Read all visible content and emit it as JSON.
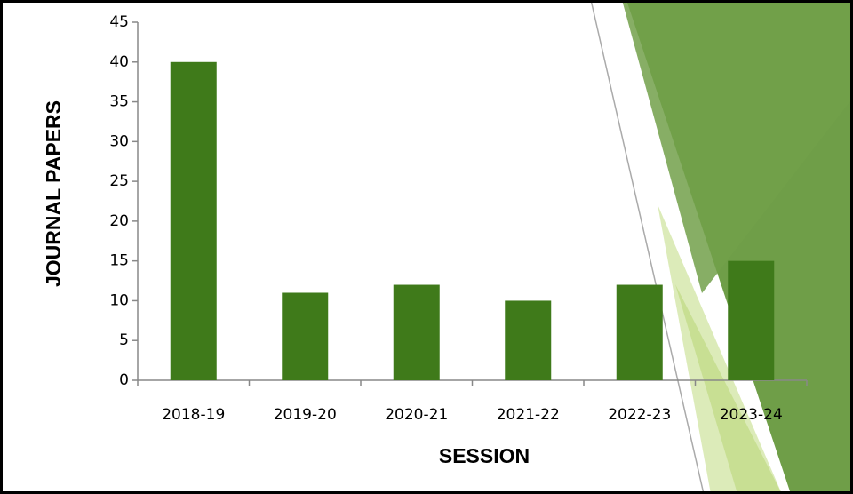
{
  "chart_data": {
    "type": "bar",
    "x_label": "SESSION",
    "y_label": "JOURNAL PAPERS",
    "categories": [
      "2018-19",
      "2019-20",
      "2020-21",
      "2021-22",
      "2022-23",
      "2023-24"
    ],
    "values": [
      40,
      11,
      12,
      10,
      12,
      15
    ],
    "color": "#3f7a1a",
    "ylim": [
      0,
      45
    ],
    "yticks": [
      0,
      5,
      10,
      15,
      20,
      25,
      30,
      35,
      40,
      45
    ],
    "grid": false
  }
}
